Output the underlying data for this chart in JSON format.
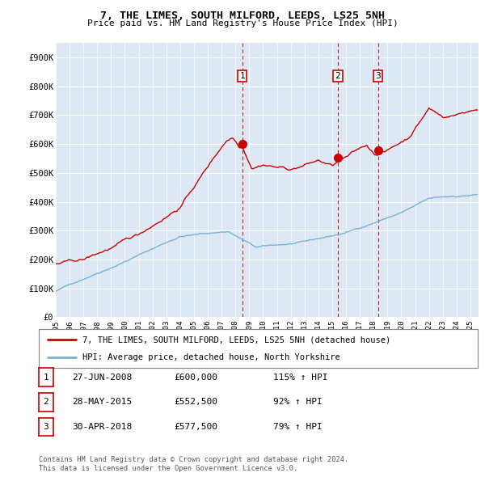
{
  "title": "7, THE LIMES, SOUTH MILFORD, LEEDS, LS25 5NH",
  "subtitle": "Price paid vs. HM Land Registry's House Price Index (HPI)",
  "ylabel_ticks": [
    "£0",
    "£100K",
    "£200K",
    "£300K",
    "£400K",
    "£500K",
    "£600K",
    "£700K",
    "£800K",
    "£900K"
  ],
  "ytick_vals": [
    0,
    100000,
    200000,
    300000,
    400000,
    500000,
    600000,
    700000,
    800000,
    900000
  ],
  "ylim": [
    0,
    950000
  ],
  "xlim_start": 1995.0,
  "xlim_end": 2025.6,
  "background_color": "#dce9f5",
  "grid_color": "#ffffff",
  "sale_color": "#cc0000",
  "hpi_color": "#7ab0d4",
  "transaction_dline_color": "#cc0000",
  "transactions": [
    {
      "num": "1",
      "date_x": 2008.49,
      "price": 600000,
      "date_str": "27-JUN-2008",
      "price_str": "£600,000",
      "pct": "115% ↑ HPI"
    },
    {
      "num": "2",
      "date_x": 2015.41,
      "price": 552500,
      "date_str": "28-MAY-2015",
      "price_str": "£552,500",
      "pct": "92% ↑ HPI"
    },
    {
      "num": "3",
      "date_x": 2018.33,
      "price": 577500,
      "date_str": "30-APR-2018",
      "price_str": "£577,500",
      "pct": "79% ↑ HPI"
    }
  ],
  "footer_line1": "Contains HM Land Registry data © Crown copyright and database right 2024.",
  "footer_line2": "This data is licensed under the Open Government Licence v3.0.",
  "legend_label_red": "7, THE LIMES, SOUTH MILFORD, LEEDS, LS25 5NH (detached house)",
  "legend_label_blue": "HPI: Average price, detached house, North Yorkshire"
}
